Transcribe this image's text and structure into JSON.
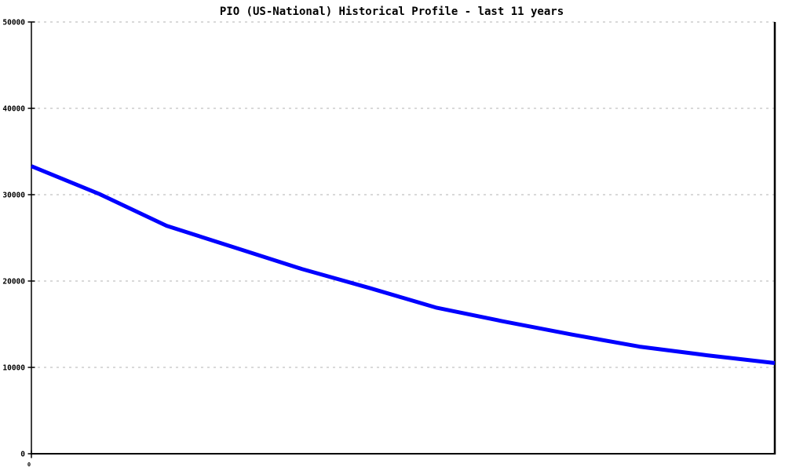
{
  "title": "PIO (US-National) Historical Profile - last 11 years",
  "colors": {
    "line": "#0000ff",
    "grid": "#b3b3b3",
    "axis": "#000000",
    "background": "#ffffff",
    "text": "#000000"
  },
  "chart_data": {
    "type": "line",
    "title": "PIO (US-National) Historical Profile - last 11 years",
    "series_name": "PIO (US-National)",
    "x": [
      0,
      1,
      2,
      3,
      4,
      5,
      6,
      7,
      8,
      9,
      10,
      11
    ],
    "values": [
      33300,
      30100,
      26400,
      23900,
      21400,
      19200,
      16900,
      15300,
      13800,
      12400,
      11400,
      10500
    ],
    "xlabel": "",
    "ylabel": "",
    "ylim": [
      0,
      50000
    ],
    "y_ticks": [
      0,
      10000,
      20000,
      30000,
      40000,
      50000
    ],
    "y_tick_labels": [
      "0",
      "10000",
      "20000",
      "30000",
      "40000",
      "50000"
    ],
    "x_tick_label_visible": "0",
    "grid": "horizontal-dashed",
    "legend": "none"
  }
}
